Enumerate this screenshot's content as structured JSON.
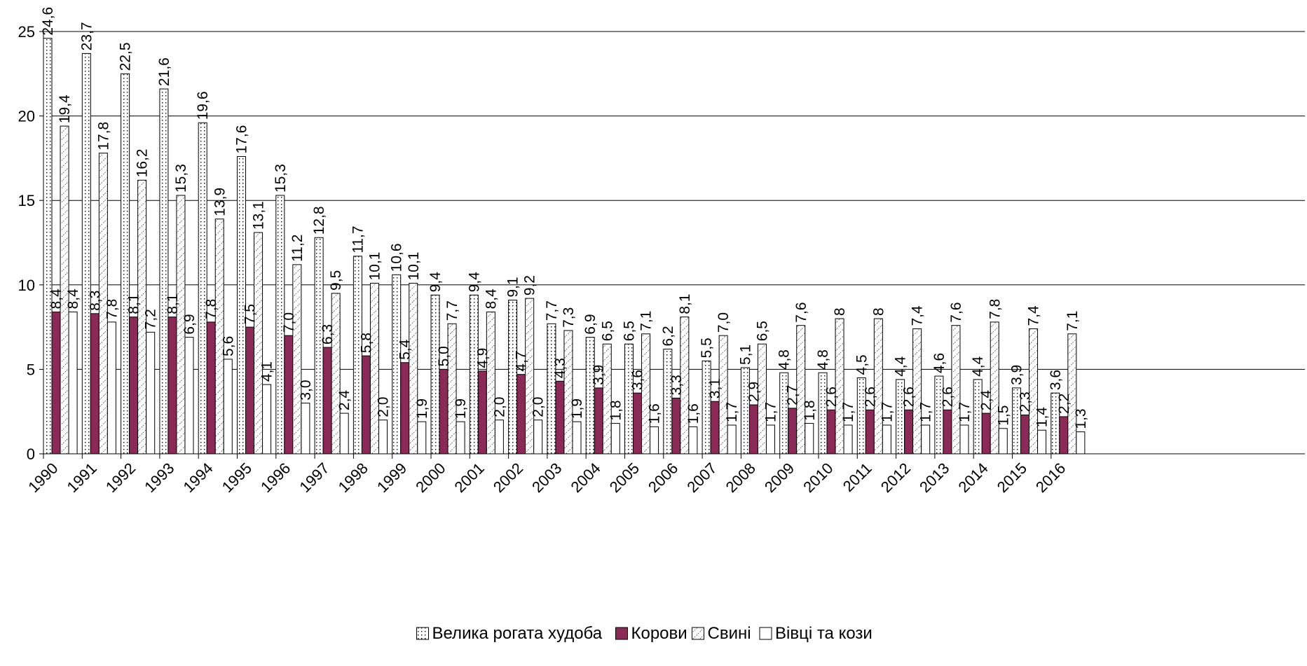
{
  "chart_data": {
    "type": "bar",
    "categories": [
      "1990",
      "1991",
      "1992",
      "1993",
      "1994",
      "1995",
      "1996",
      "1997",
      "1998",
      "1999",
      "2000",
      "2001",
      "2002",
      "2003",
      "2004",
      "2005",
      "2006",
      "2007",
      "2008",
      "2009",
      "2010",
      "2011",
      "2012",
      "2013",
      "2014",
      "2015",
      "2016"
    ],
    "series": [
      {
        "name": "Велика рогата худоба",
        "pattern": "dots",
        "labels": [
          "24,6",
          "23,7",
          "22,5",
          "21,6",
          "19,6",
          "17,6",
          "15,3",
          "12,8",
          "11,7",
          "10,6",
          "9,4",
          "9,4",
          "9,1",
          "7,7",
          "6,9",
          "6,5",
          "6,2",
          "5,5",
          "5,1",
          "4,8",
          "4,8",
          "4,5",
          "4,4",
          "4,6",
          "4,4",
          "3,9",
          "3,6"
        ],
        "values": [
          24.6,
          23.7,
          22.5,
          21.6,
          19.6,
          17.6,
          15.3,
          12.8,
          11.7,
          10.6,
          9.4,
          9.4,
          9.1,
          7.7,
          6.9,
          6.5,
          6.2,
          5.5,
          5.1,
          4.8,
          4.8,
          4.5,
          4.4,
          4.6,
          4.4,
          3.9,
          3.6
        ]
      },
      {
        "name": "Корови",
        "pattern": "solid",
        "color": "#8B2A57",
        "labels": [
          "8,4",
          "8,3",
          "8,1",
          "8,1",
          "7,8",
          "7,5",
          "7,0",
          "6,3",
          "5,8",
          "5,4",
          "5,0",
          "4,9",
          "4,7",
          "4,3",
          "3,9",
          "3,6",
          "3,3",
          "3,1",
          "2,9",
          "2,7",
          "2,6",
          "2,6",
          "2,6",
          "2,6",
          "2,4",
          "2,3",
          "2,2"
        ],
        "values": [
          8.4,
          8.3,
          8.1,
          8.1,
          7.8,
          7.5,
          7.0,
          6.3,
          5.8,
          5.4,
          5.0,
          4.9,
          4.7,
          4.3,
          3.9,
          3.6,
          3.3,
          3.1,
          2.9,
          2.7,
          2.6,
          2.6,
          2.6,
          2.6,
          2.4,
          2.3,
          2.2
        ]
      },
      {
        "name": "Свині",
        "pattern": "hatch",
        "labels": [
          "19,4",
          "17,8",
          "16,2",
          "15,3",
          "13,9",
          "13,1",
          "11,2",
          "9,5",
          "10,1",
          "10,1",
          "7,7",
          "8,4",
          "9,2",
          "7,3",
          "6,5",
          "7,1",
          "8,1",
          "7,0",
          "6,5",
          "7,6",
          "8",
          "8",
          "7,4",
          "7,6",
          "7,8",
          "7,4",
          "7,1"
        ],
        "values": [
          19.4,
          17.8,
          16.2,
          15.3,
          13.9,
          13.1,
          11.2,
          9.5,
          10.1,
          10.1,
          7.7,
          8.4,
          9.2,
          7.3,
          6.5,
          7.1,
          8.1,
          7.0,
          6.5,
          7.6,
          8,
          8,
          7.4,
          7.6,
          7.8,
          7.4,
          7.1
        ]
      },
      {
        "name": "Вівці та кози",
        "pattern": "empty",
        "labels": [
          "8,4",
          "7,8",
          "7,2",
          "6,9",
          "5,6",
          "4,1",
          "3,0",
          "2,4",
          "2,0",
          "1,9",
          "1,9",
          "2,0",
          "2,0",
          "1,9",
          "1,8",
          "1,6",
          "1,6",
          "1,7",
          "1,7",
          "1,8",
          "1,7",
          "1,7",
          "1,7",
          "1,7",
          "1,5",
          "1,4",
          "1,3"
        ],
        "values": [
          8.4,
          7.8,
          7.2,
          6.9,
          5.6,
          4.1,
          3.0,
          2.4,
          2.0,
          1.9,
          1.9,
          2.0,
          2.0,
          1.9,
          1.8,
          1.6,
          1.6,
          1.7,
          1.7,
          1.8,
          1.7,
          1.7,
          1.7,
          1.7,
          1.5,
          1.4,
          1.3
        ]
      }
    ],
    "y_ticks": [
      "0",
      "5",
      "10",
      "15",
      "20",
      "25"
    ],
    "ylim": [
      0,
      25
    ],
    "grid": true,
    "legend_position": "bottom"
  }
}
